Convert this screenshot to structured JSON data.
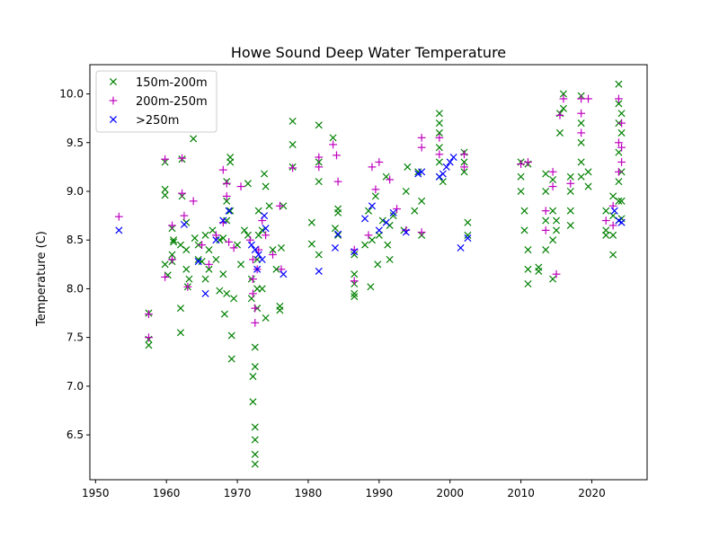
{
  "chart_data": {
    "type": "scatter",
    "title": "Howe Sound Deep Water Temperature",
    "xlabel": "",
    "ylabel": "Temperature (C)",
    "xlim": [
      1949.2,
      2027.8
    ],
    "ylim": [
      6.04,
      10.3
    ],
    "xticks": [
      1950,
      1960,
      1970,
      1980,
      1990,
      2000,
      2010,
      2020
    ],
    "yticks": [
      6.5,
      7.0,
      7.5,
      8.0,
      8.5,
      9.0,
      9.5,
      10.0
    ],
    "ytick_labels": [
      "6.5",
      "7.0",
      "7.5",
      "8.0",
      "8.5",
      "9.0",
      "9.5",
      "10.0"
    ],
    "grid": false,
    "legend_position": "top-left",
    "series": [
      {
        "name": "150m-200m",
        "marker": "x",
        "color": "#008000",
        "points": [
          [
            1957.5,
            7.42
          ],
          [
            1957.5,
            7.48
          ],
          [
            1957.5,
            7.75
          ],
          [
            1959.8,
            8.25
          ],
          [
            1959.8,
            8.96
          ],
          [
            1959.8,
            9.02
          ],
          [
            1959.8,
            9.3
          ],
          [
            1960.2,
            8.14
          ],
          [
            1960.8,
            8.28
          ],
          [
            1960.8,
            8.35
          ],
          [
            1960.8,
            8.62
          ],
          [
            1961.0,
            8.48
          ],
          [
            1961.0,
            8.5
          ],
          [
            1962.0,
            7.55
          ],
          [
            1962.0,
            7.8
          ],
          [
            1962.0,
            8.45
          ],
          [
            1962.2,
            8.95
          ],
          [
            1962.2,
            9.33
          ],
          [
            1962.8,
            8.2
          ],
          [
            1962.8,
            8.4
          ],
          [
            1962.8,
            8.68
          ],
          [
            1963.0,
            8.02
          ],
          [
            1963.2,
            8.1
          ],
          [
            1963.8,
            9.54
          ],
          [
            1964.0,
            8.52
          ],
          [
            1964.5,
            8.3
          ],
          [
            1964.5,
            8.45
          ],
          [
            1965.0,
            8.28
          ],
          [
            1965.5,
            8.1
          ],
          [
            1965.5,
            8.55
          ],
          [
            1966.0,
            8.4
          ],
          [
            1966.0,
            8.2
          ],
          [
            1966.5,
            8.6
          ],
          [
            1967.0,
            8.3
          ],
          [
            1967.5,
            7.98
          ],
          [
            1967.5,
            8.5
          ],
          [
            1968.0,
            8.15
          ],
          [
            1968.0,
            8.52
          ],
          [
            1968.2,
            7.74
          ],
          [
            1968.5,
            8.7
          ],
          [
            1968.5,
            8.9
          ],
          [
            1968.5,
            9.1
          ],
          [
            1968.5,
            7.95
          ],
          [
            1969.0,
            9.35
          ],
          [
            1969.0,
            9.3
          ],
          [
            1969.0,
            8.8
          ],
          [
            1969.2,
            7.52
          ],
          [
            1969.2,
            7.28
          ],
          [
            1969.5,
            7.9
          ],
          [
            1970.0,
            8.45
          ],
          [
            1970.5,
            8.25
          ],
          [
            1971.0,
            8.6
          ],
          [
            1971.5,
            9.08
          ],
          [
            1971.5,
            8.55
          ],
          [
            1972.0,
            8.1
          ],
          [
            1972.0,
            7.9
          ],
          [
            1972.2,
            7.1
          ],
          [
            1972.2,
            6.84
          ],
          [
            1972.5,
            6.2
          ],
          [
            1972.5,
            6.3
          ],
          [
            1972.5,
            6.45
          ],
          [
            1972.5,
            6.58
          ],
          [
            1972.5,
            7.2
          ],
          [
            1972.5,
            7.4
          ],
          [
            1972.8,
            7.8
          ],
          [
            1972.8,
            8.0
          ],
          [
            1972.8,
            8.3
          ],
          [
            1973.0,
            8.55
          ],
          [
            1973.0,
            8.8
          ],
          [
            1973.5,
            8.6
          ],
          [
            1973.5,
            8.0
          ],
          [
            1973.8,
            9.18
          ],
          [
            1974.0,
            9.05
          ],
          [
            1974.0,
            7.7
          ],
          [
            1974.5,
            8.85
          ],
          [
            1975.0,
            8.4
          ],
          [
            1975.5,
            8.2
          ],
          [
            1976.0,
            7.82
          ],
          [
            1976.0,
            7.78
          ],
          [
            1976.2,
            8.42
          ],
          [
            1976.5,
            8.85
          ],
          [
            1977.8,
            9.72
          ],
          [
            1977.8,
            9.48
          ],
          [
            1977.8,
            9.25
          ],
          [
            1980.5,
            8.68
          ],
          [
            1980.5,
            8.46
          ],
          [
            1981.5,
            9.68
          ],
          [
            1981.5,
            9.3
          ],
          [
            1981.5,
            9.1
          ],
          [
            1981.5,
            8.35
          ],
          [
            1983.5,
            9.55
          ],
          [
            1983.8,
            8.62
          ],
          [
            1984.2,
            8.82
          ],
          [
            1984.2,
            8.78
          ],
          [
            1984.2,
            8.55
          ],
          [
            1986.5,
            8.05
          ],
          [
            1986.5,
            7.95
          ],
          [
            1986.5,
            7.92
          ],
          [
            1986.5,
            8.35
          ],
          [
            1986.5,
            8.15
          ],
          [
            1988.0,
            8.45
          ],
          [
            1988.5,
            8.8
          ],
          [
            1988.8,
            8.02
          ],
          [
            1989.0,
            8.5
          ],
          [
            1989.5,
            8.95
          ],
          [
            1989.8,
            8.25
          ],
          [
            1990.0,
            8.55
          ],
          [
            1990.5,
            8.7
          ],
          [
            1991.0,
            9.15
          ],
          [
            1991.2,
            8.45
          ],
          [
            1991.5,
            8.65
          ],
          [
            1991.5,
            8.3
          ],
          [
            1992.0,
            8.75
          ],
          [
            1993.5,
            8.6
          ],
          [
            1993.8,
            9.0
          ],
          [
            1994.0,
            9.25
          ],
          [
            1995.0,
            8.8
          ],
          [
            1995.5,
            9.2
          ],
          [
            1996.0,
            8.55
          ],
          [
            1996.0,
            8.9
          ],
          [
            1998.5,
            9.8
          ],
          [
            1998.5,
            9.7
          ],
          [
            1998.5,
            9.6
          ],
          [
            1998.5,
            9.45
          ],
          [
            1998.5,
            9.3
          ],
          [
            1998.5,
            9.15
          ],
          [
            1999.0,
            9.1
          ],
          [
            2002.0,
            9.4
          ],
          [
            2002.0,
            9.3
          ],
          [
            2002.0,
            9.2
          ],
          [
            2002.5,
            8.68
          ],
          [
            2002.5,
            8.55
          ],
          [
            2010.0,
            9.3
          ],
          [
            2010.0,
            9.15
          ],
          [
            2010.0,
            9.0
          ],
          [
            2010.5,
            8.8
          ],
          [
            2010.5,
            8.6
          ],
          [
            2011.0,
            8.4
          ],
          [
            2011.0,
            8.2
          ],
          [
            2011.0,
            8.05
          ],
          [
            2011.0,
            9.28
          ],
          [
            2012.5,
            8.18
          ],
          [
            2012.5,
            8.22
          ],
          [
            2013.5,
            9.18
          ],
          [
            2013.5,
            9.0
          ],
          [
            2013.5,
            8.7
          ],
          [
            2013.5,
            8.4
          ],
          [
            2014.5,
            8.8
          ],
          [
            2014.5,
            8.5
          ],
          [
            2014.5,
            8.1
          ],
          [
            2014.5,
            9.12
          ],
          [
            2015.0,
            8.6
          ],
          [
            2015.0,
            8.7
          ],
          [
            2015.5,
            9.8
          ],
          [
            2015.5,
            9.6
          ],
          [
            2016.0,
            10.0
          ],
          [
            2016.0,
            9.85
          ],
          [
            2017.0,
            9.15
          ],
          [
            2017.0,
            9.0
          ],
          [
            2017.0,
            8.8
          ],
          [
            2017.0,
            8.65
          ],
          [
            2018.5,
            9.98
          ],
          [
            2018.5,
            9.7
          ],
          [
            2018.5,
            9.5
          ],
          [
            2018.5,
            9.3
          ],
          [
            2018.5,
            9.15
          ],
          [
            2019.5,
            9.2
          ],
          [
            2019.5,
            9.05
          ],
          [
            2022.0,
            8.8
          ],
          [
            2022.0,
            8.55
          ],
          [
            2022.0,
            8.6
          ],
          [
            2023.0,
            8.35
          ],
          [
            2023.0,
            8.55
          ],
          [
            2023.0,
            8.75
          ],
          [
            2023.0,
            8.95
          ],
          [
            2023.8,
            10.1
          ],
          [
            2023.8,
            9.9
          ],
          [
            2023.8,
            9.7
          ],
          [
            2023.8,
            9.4
          ],
          [
            2023.8,
            9.1
          ],
          [
            2023.8,
            8.9
          ],
          [
            2023.8,
            8.7
          ],
          [
            2024.2,
            9.8
          ],
          [
            2024.2,
            9.6
          ],
          [
            2024.2,
            9.2
          ],
          [
            2024.2,
            8.9
          ],
          [
            2024.2,
            8.72
          ]
        ]
      },
      {
        "name": "200m-250m",
        "marker": "+",
        "color": "#bf00bf",
        "points": [
          [
            1953.3,
            8.74
          ],
          [
            1957.5,
            7.5
          ],
          [
            1957.5,
            7.74
          ],
          [
            1959.8,
            9.33
          ],
          [
            1959.8,
            8.12
          ],
          [
            1960.8,
            8.65
          ],
          [
            1960.8,
            8.3
          ],
          [
            1962.2,
            9.34
          ],
          [
            1962.2,
            8.98
          ],
          [
            1962.5,
            8.75
          ],
          [
            1963.0,
            8.02
          ],
          [
            1963.8,
            8.9
          ],
          [
            1965.0,
            8.45
          ],
          [
            1966.0,
            8.25
          ],
          [
            1967.0,
            8.55
          ],
          [
            1968.0,
            8.68
          ],
          [
            1968.0,
            9.22
          ],
          [
            1968.5,
            8.95
          ],
          [
            1968.5,
            9.08
          ],
          [
            1968.8,
            8.48
          ],
          [
            1969.5,
            8.42
          ],
          [
            1970.5,
            9.05
          ],
          [
            1971.8,
            8.5
          ],
          [
            1972.2,
            8.3
          ],
          [
            1972.2,
            8.1
          ],
          [
            1972.2,
            7.95
          ],
          [
            1972.5,
            7.8
          ],
          [
            1972.5,
            7.65
          ],
          [
            1972.8,
            8.2
          ],
          [
            1973.0,
            8.4
          ],
          [
            1973.5,
            8.7
          ],
          [
            1974.0,
            8.55
          ],
          [
            1975.0,
            8.35
          ],
          [
            1976.0,
            8.85
          ],
          [
            1976.2,
            8.2
          ],
          [
            1977.8,
            9.24
          ],
          [
            1981.5,
            9.25
          ],
          [
            1981.5,
            9.35
          ],
          [
            1983.5,
            9.48
          ],
          [
            1984.0,
            9.37
          ],
          [
            1984.2,
            9.1
          ],
          [
            1986.5,
            8.08
          ],
          [
            1986.5,
            8.4
          ],
          [
            1988.5,
            8.55
          ],
          [
            1989.0,
            9.25
          ],
          [
            1989.5,
            9.02
          ],
          [
            1990.0,
            9.3
          ],
          [
            1991.5,
            9.12
          ],
          [
            1992.5,
            8.82
          ],
          [
            1993.8,
            8.6
          ],
          [
            1996.0,
            9.55
          ],
          [
            1996.0,
            9.45
          ],
          [
            1996.0,
            8.58
          ],
          [
            1998.5,
            9.55
          ],
          [
            1998.5,
            9.38
          ],
          [
            2002.0,
            9.38
          ],
          [
            2002.0,
            9.25
          ],
          [
            2010.0,
            9.28
          ],
          [
            2011.0,
            9.3
          ],
          [
            2013.5,
            8.6
          ],
          [
            2013.5,
            8.8
          ],
          [
            2014.5,
            9.05
          ],
          [
            2014.5,
            9.2
          ],
          [
            2015.0,
            8.15
          ],
          [
            2015.5,
            9.78
          ],
          [
            2016.0,
            9.95
          ],
          [
            2017.0,
            9.08
          ],
          [
            2018.5,
            9.95
          ],
          [
            2018.5,
            9.8
          ],
          [
            2018.5,
            9.6
          ],
          [
            2019.5,
            9.95
          ],
          [
            2022.0,
            8.7
          ],
          [
            2023.0,
            8.65
          ],
          [
            2023.0,
            8.85
          ],
          [
            2023.8,
            9.95
          ],
          [
            2023.8,
            9.5
          ],
          [
            2023.8,
            9.2
          ],
          [
            2024.2,
            9.7
          ],
          [
            2024.2,
            9.45
          ],
          [
            2024.2,
            9.3
          ]
        ]
      },
      {
        "name": ">250m",
        "marker": "x",
        "color": "#0000ff",
        "points": [
          [
            1953.3,
            8.6
          ],
          [
            1962.5,
            8.66
          ],
          [
            1964.5,
            8.28
          ],
          [
            1965.5,
            7.95
          ],
          [
            1967.0,
            8.5
          ],
          [
            1968.0,
            8.7
          ],
          [
            1968.8,
            8.8
          ],
          [
            1972.0,
            8.45
          ],
          [
            1972.5,
            8.4
          ],
          [
            1972.8,
            8.2
          ],
          [
            1973.0,
            8.35
          ],
          [
            1973.5,
            8.3
          ],
          [
            1973.8,
            8.75
          ],
          [
            1974.0,
            8.62
          ],
          [
            1976.5,
            8.15
          ],
          [
            1981.5,
            8.18
          ],
          [
            1983.8,
            8.42
          ],
          [
            1984.2,
            8.56
          ],
          [
            1986.5,
            8.38
          ],
          [
            1988.0,
            8.72
          ],
          [
            1989.0,
            8.85
          ],
          [
            1990.0,
            8.6
          ],
          [
            1991.0,
            8.68
          ],
          [
            1992.0,
            8.78
          ],
          [
            1993.8,
            8.58
          ],
          [
            1995.5,
            9.18
          ],
          [
            1996.0,
            9.2
          ],
          [
            1998.5,
            9.15
          ],
          [
            1999.0,
            9.18
          ],
          [
            1999.5,
            9.25
          ],
          [
            2000.0,
            9.3
          ],
          [
            2000.5,
            9.35
          ],
          [
            2001.5,
            8.42
          ],
          [
            2002.5,
            8.52
          ],
          [
            2023.2,
            8.8
          ],
          [
            2023.8,
            8.7
          ],
          [
            2024.2,
            8.68
          ]
        ]
      }
    ]
  }
}
